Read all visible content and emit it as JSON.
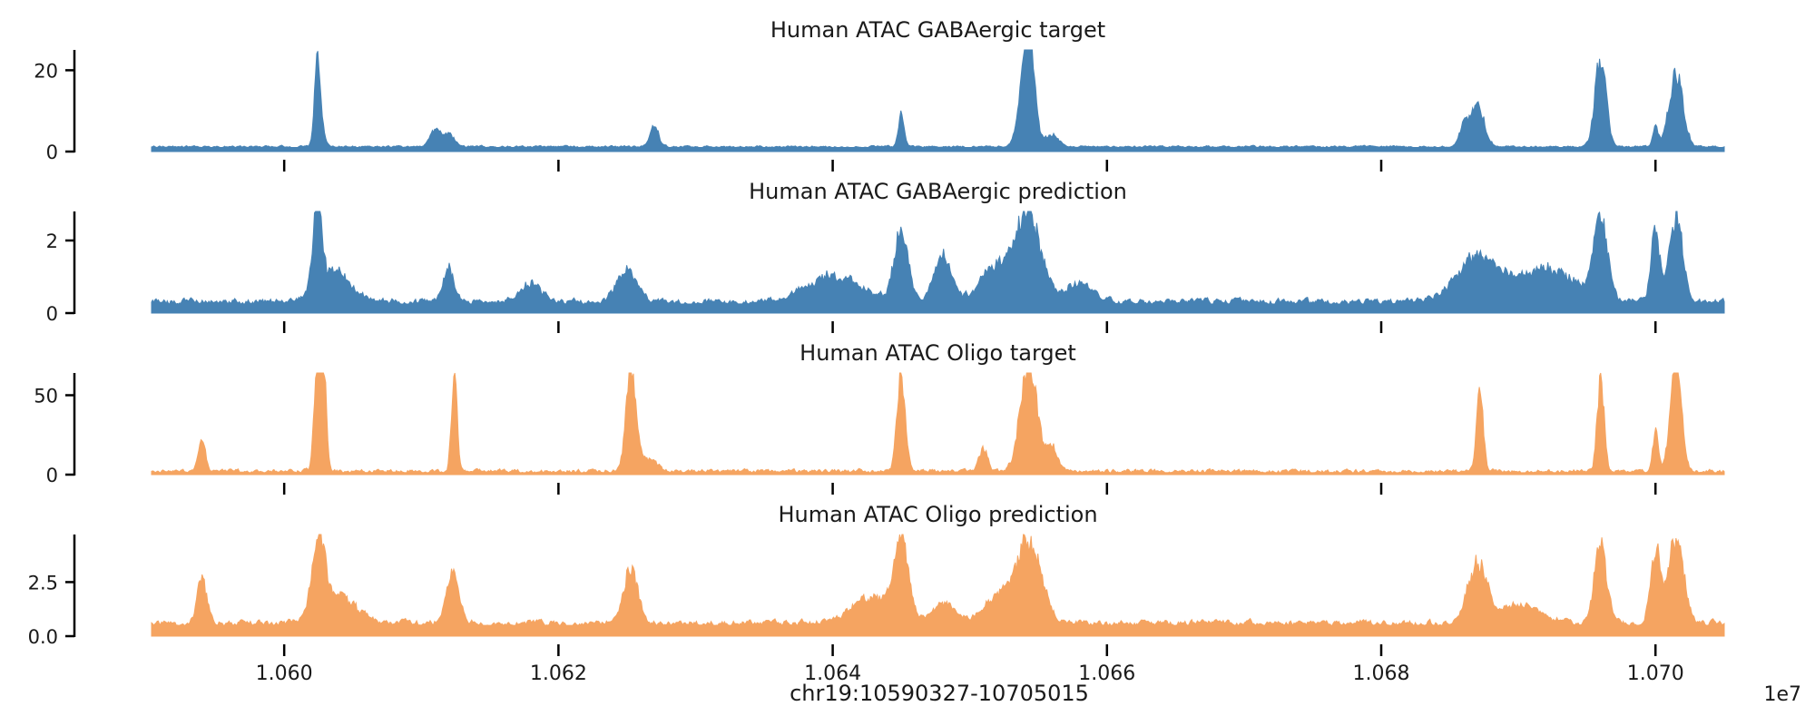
{
  "xlabel": "chr19:10590327-10705015",
  "x_offset_label": "1e7",
  "x_ticks": [
    10600000,
    10620000,
    10640000,
    10660000,
    10680000,
    10700000
  ],
  "x_tick_labels": [
    "1.060",
    "1.062",
    "1.064",
    "1.066",
    "1.068",
    "1.070"
  ],
  "xlim": [
    10590327,
    10705015
  ],
  "chart_data": [
    {
      "type": "area",
      "title": "Human ATAC GABAergic target",
      "color": "#4682b4",
      "ylim": [
        0,
        25
      ],
      "y_ticks": [
        0,
        20
      ],
      "y_tick_labels": [
        "0",
        "20"
      ],
      "baseline": 1.0,
      "noise": 0.45,
      "peaks": [
        {
          "x": 10602400,
          "h": 19,
          "w": 200
        },
        {
          "x": 10602700,
          "h": 5,
          "w": 250
        },
        {
          "x": 10611000,
          "h": 4,
          "w": 400
        },
        {
          "x": 10612000,
          "h": 3,
          "w": 400
        },
        {
          "x": 10627000,
          "h": 5,
          "w": 300
        },
        {
          "x": 10645000,
          "h": 8,
          "w": 200
        },
        {
          "x": 10654000,
          "h": 10,
          "w": 500
        },
        {
          "x": 10654300,
          "h": 23,
          "w": 400
        },
        {
          "x": 10656000,
          "h": 3,
          "w": 500
        },
        {
          "x": 10686000,
          "h": 5,
          "w": 300
        },
        {
          "x": 10687000,
          "h": 10,
          "w": 500
        },
        {
          "x": 10696000,
          "h": 22,
          "w": 400
        },
        {
          "x": 10700000,
          "h": 5,
          "w": 200
        },
        {
          "x": 10701500,
          "h": 18,
          "w": 500
        }
      ]
    },
    {
      "type": "area",
      "title": "Human ATAC GABAergic prediction",
      "color": "#4682b4",
      "ylim": [
        0,
        2.8
      ],
      "y_ticks": [
        0,
        2
      ],
      "y_tick_labels": [
        "0",
        "2"
      ],
      "baseline": 0.25,
      "noise": 0.15,
      "peaks": [
        {
          "x": 10602400,
          "h": 2.3,
          "w": 300
        },
        {
          "x": 10603500,
          "h": 0.9,
          "w": 1200
        },
        {
          "x": 10612000,
          "h": 0.9,
          "w": 400
        },
        {
          "x": 10618000,
          "h": 0.5,
          "w": 800
        },
        {
          "x": 10625000,
          "h": 0.9,
          "w": 700
        },
        {
          "x": 10640000,
          "h": 0.7,
          "w": 2000
        },
        {
          "x": 10645000,
          "h": 1.9,
          "w": 500
        },
        {
          "x": 10648000,
          "h": 1.3,
          "w": 600
        },
        {
          "x": 10652000,
          "h": 1.0,
          "w": 1200
        },
        {
          "x": 10654300,
          "h": 2.3,
          "w": 900
        },
        {
          "x": 10658000,
          "h": 0.5,
          "w": 1000
        },
        {
          "x": 10687000,
          "h": 1.2,
          "w": 1500
        },
        {
          "x": 10692000,
          "h": 0.9,
          "w": 2200
        },
        {
          "x": 10696000,
          "h": 2.2,
          "w": 500
        },
        {
          "x": 10700000,
          "h": 2.0,
          "w": 300
        },
        {
          "x": 10701500,
          "h": 2.3,
          "w": 500
        }
      ]
    },
    {
      "type": "area",
      "title": "Human ATAC Oligo target",
      "color": "#f5a461",
      "ylim": [
        0,
        64
      ],
      "y_ticks": [
        0,
        50
      ],
      "y_tick_labels": [
        "0",
        "50"
      ],
      "baseline": 1.2,
      "noise": 2.2,
      "peaks": [
        {
          "x": 10594000,
          "h": 20,
          "w": 250
        },
        {
          "x": 10602400,
          "h": 66,
          "w": 220
        },
        {
          "x": 10602900,
          "h": 58,
          "w": 200
        },
        {
          "x": 10612400,
          "h": 64,
          "w": 200
        },
        {
          "x": 10625300,
          "h": 64,
          "w": 350
        },
        {
          "x": 10626500,
          "h": 8,
          "w": 600
        },
        {
          "x": 10645000,
          "h": 61,
          "w": 300
        },
        {
          "x": 10654300,
          "h": 70,
          "w": 600
        },
        {
          "x": 10651000,
          "h": 15,
          "w": 300
        },
        {
          "x": 10656000,
          "h": 15,
          "w": 400
        },
        {
          "x": 10687200,
          "h": 48,
          "w": 250
        },
        {
          "x": 10696000,
          "h": 58,
          "w": 250
        },
        {
          "x": 10700000,
          "h": 25,
          "w": 200
        },
        {
          "x": 10701500,
          "h": 66,
          "w": 400
        }
      ]
    },
    {
      "type": "area",
      "title": "Human ATAC Oligo prediction",
      "color": "#f5a461",
      "ylim": [
        0,
        4.7
      ],
      "y_ticks": [
        0,
        2.5
      ],
      "y_tick_labels": [
        "0.0",
        "2.5"
      ],
      "baseline": 0.5,
      "noise": 0.25,
      "peaks": [
        {
          "x": 10594000,
          "h": 2.1,
          "w": 350
        },
        {
          "x": 10602500,
          "h": 3.5,
          "w": 500
        },
        {
          "x": 10604000,
          "h": 1.2,
          "w": 1200
        },
        {
          "x": 10612300,
          "h": 2.4,
          "w": 450
        },
        {
          "x": 10625300,
          "h": 2.6,
          "w": 500
        },
        {
          "x": 10643000,
          "h": 1.2,
          "w": 1500
        },
        {
          "x": 10645000,
          "h": 3.5,
          "w": 500
        },
        {
          "x": 10648000,
          "h": 0.9,
          "w": 800
        },
        {
          "x": 10652000,
          "h": 1.2,
          "w": 1000
        },
        {
          "x": 10654300,
          "h": 3.8,
          "w": 900
        },
        {
          "x": 10687000,
          "h": 2.7,
          "w": 700
        },
        {
          "x": 10690000,
          "h": 0.8,
          "w": 1500
        },
        {
          "x": 10696000,
          "h": 3.6,
          "w": 450
        },
        {
          "x": 10700000,
          "h": 3.5,
          "w": 350
        },
        {
          "x": 10701500,
          "h": 3.9,
          "w": 550
        }
      ]
    }
  ]
}
